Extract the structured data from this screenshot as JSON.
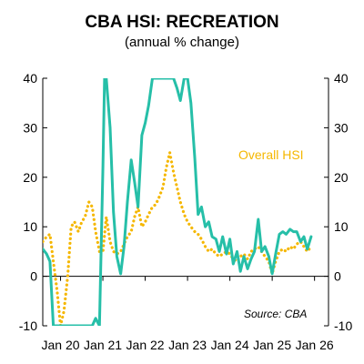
{
  "chart_data": {
    "type": "line",
    "title": "CBA HSI: RECREATION",
    "subtitle": "(annual % change)",
    "xlabel": "",
    "ylabel": "",
    "ylim": [
      -10,
      40
    ],
    "y_ticks": [
      "-10",
      "0",
      "10",
      "20",
      "30",
      "40"
    ],
    "y_ticks_right": [
      "-10",
      "0",
      "10",
      "20",
      "30",
      "40"
    ],
    "x_ticks": [
      {
        "label": "Jan 20",
        "t": 2020.0
      },
      {
        "label": "Jan 21",
        "t": 2021.0
      },
      {
        "label": "Jan 22",
        "t": 2022.0
      },
      {
        "label": "Jan 23",
        "t": 2023.0
      },
      {
        "label": "Jan 24",
        "t": 2024.0
      },
      {
        "label": "Jan 25",
        "t": 2025.0
      },
      {
        "label": "Jan 26",
        "t": 2026.0
      }
    ],
    "grid": false,
    "annotations": [
      {
        "text": "Overall HSI",
        "color": "#f5b700"
      },
      {
        "text": "Source:  CBA",
        "color": "#000000"
      }
    ],
    "series": [
      {
        "name": "Recreation",
        "color": "#26bfa8",
        "style": "solid",
        "points": [
          [
            2019.58,
            5.5
          ],
          [
            2019.67,
            4.5
          ],
          [
            2019.75,
            3
          ],
          [
            2019.83,
            -10
          ],
          [
            2019.92,
            -10
          ],
          [
            2020.0,
            -10
          ],
          [
            2020.25,
            -10
          ],
          [
            2020.5,
            -10
          ],
          [
            2020.75,
            -10
          ],
          [
            2020.83,
            -8.5
          ],
          [
            2020.92,
            -10
          ],
          [
            2021.0,
            22
          ],
          [
            2021.04,
            40
          ],
          [
            2021.08,
            40
          ],
          [
            2021.17,
            30
          ],
          [
            2021.25,
            13
          ],
          [
            2021.33,
            4
          ],
          [
            2021.42,
            0.5
          ],
          [
            2021.5,
            6
          ],
          [
            2021.58,
            15
          ],
          [
            2021.67,
            23.5
          ],
          [
            2021.75,
            19
          ],
          [
            2021.83,
            14
          ],
          [
            2021.92,
            28.5
          ],
          [
            2022.0,
            31
          ],
          [
            2022.08,
            34.5
          ],
          [
            2022.17,
            40
          ],
          [
            2022.25,
            40
          ],
          [
            2022.5,
            40
          ],
          [
            2022.58,
            40
          ],
          [
            2022.67,
            40
          ],
          [
            2022.75,
            38
          ],
          [
            2022.83,
            35.5
          ],
          [
            2022.92,
            40
          ],
          [
            2023.0,
            40
          ],
          [
            2023.08,
            35
          ],
          [
            2023.17,
            24
          ],
          [
            2023.25,
            12.5
          ],
          [
            2023.33,
            14
          ],
          [
            2023.42,
            10
          ],
          [
            2023.5,
            11
          ],
          [
            2023.58,
            8
          ],
          [
            2023.67,
            7.5
          ],
          [
            2023.75,
            5
          ],
          [
            2023.83,
            8
          ],
          [
            2023.92,
            4.5
          ],
          [
            2024.0,
            7.5
          ],
          [
            2024.08,
            2.5
          ],
          [
            2024.17,
            5
          ],
          [
            2024.25,
            1
          ],
          [
            2024.33,
            4
          ],
          [
            2024.42,
            1.5
          ],
          [
            2024.5,
            3.5
          ],
          [
            2024.58,
            5
          ],
          [
            2024.67,
            11.5
          ],
          [
            2024.75,
            5
          ],
          [
            2024.83,
            6
          ],
          [
            2024.92,
            4
          ],
          [
            2025.0,
            0.5
          ],
          [
            2025.08,
            4.5
          ],
          [
            2025.17,
            8.5
          ],
          [
            2025.25,
            9
          ],
          [
            2025.33,
            8.5
          ],
          [
            2025.42,
            9.5
          ],
          [
            2025.5,
            9
          ],
          [
            2025.58,
            9
          ],
          [
            2025.67,
            7
          ],
          [
            2025.75,
            8
          ],
          [
            2025.83,
            5.5
          ],
          [
            2025.92,
            8
          ]
        ]
      },
      {
        "name": "Overall HSI",
        "color": "#f5b700",
        "style": "dotted",
        "points": [
          [
            2019.58,
            7
          ],
          [
            2019.67,
            8
          ],
          [
            2019.75,
            8.5
          ],
          [
            2019.83,
            3
          ],
          [
            2019.92,
            -3
          ],
          [
            2020.0,
            -10
          ],
          [
            2020.08,
            -7
          ],
          [
            2020.17,
            0
          ],
          [
            2020.25,
            10
          ],
          [
            2020.33,
            11
          ],
          [
            2020.42,
            9
          ],
          [
            2020.5,
            11
          ],
          [
            2020.58,
            12
          ],
          [
            2020.67,
            15
          ],
          [
            2020.75,
            14
          ],
          [
            2020.83,
            9
          ],
          [
            2020.92,
            5
          ],
          [
            2021.0,
            5
          ],
          [
            2021.08,
            12
          ],
          [
            2021.17,
            7
          ],
          [
            2021.25,
            5
          ],
          [
            2021.33,
            4.5
          ],
          [
            2021.42,
            5
          ],
          [
            2021.5,
            6.5
          ],
          [
            2021.58,
            8
          ],
          [
            2021.67,
            9
          ],
          [
            2021.75,
            12
          ],
          [
            2021.83,
            14
          ],
          [
            2021.92,
            10
          ],
          [
            2022.0,
            11
          ],
          [
            2022.08,
            12.5
          ],
          [
            2022.17,
            14
          ],
          [
            2022.25,
            14.5
          ],
          [
            2022.33,
            16
          ],
          [
            2022.42,
            18
          ],
          [
            2022.5,
            22
          ],
          [
            2022.58,
            25
          ],
          [
            2022.67,
            21
          ],
          [
            2022.75,
            18
          ],
          [
            2022.83,
            15
          ],
          [
            2022.92,
            12.5
          ],
          [
            2023.0,
            11
          ],
          [
            2023.08,
            10
          ],
          [
            2023.17,
            9
          ],
          [
            2023.25,
            8.5
          ],
          [
            2023.33,
            7.5
          ],
          [
            2023.42,
            6
          ],
          [
            2023.5,
            5
          ],
          [
            2023.58,
            5.5
          ],
          [
            2023.67,
            4.5
          ],
          [
            2023.75,
            4
          ],
          [
            2023.83,
            4.5
          ],
          [
            2023.92,
            5
          ],
          [
            2024.0,
            4.5
          ],
          [
            2024.08,
            3.5
          ],
          [
            2024.17,
            3
          ],
          [
            2024.25,
            4
          ],
          [
            2024.33,
            4.5
          ],
          [
            2024.42,
            3.5
          ],
          [
            2024.5,
            5
          ],
          [
            2024.58,
            5.5
          ],
          [
            2024.67,
            6
          ],
          [
            2024.75,
            5
          ],
          [
            2024.83,
            4
          ],
          [
            2024.92,
            3
          ],
          [
            2025.0,
            0.5
          ],
          [
            2025.08,
            3
          ],
          [
            2025.17,
            5
          ],
          [
            2025.25,
            5.5
          ],
          [
            2025.33,
            5
          ],
          [
            2025.42,
            6
          ],
          [
            2025.5,
            5.5
          ],
          [
            2025.58,
            6.5
          ],
          [
            2025.67,
            7
          ],
          [
            2025.75,
            6
          ],
          [
            2025.83,
            5
          ],
          [
            2025.92,
            6
          ]
        ]
      }
    ]
  }
}
